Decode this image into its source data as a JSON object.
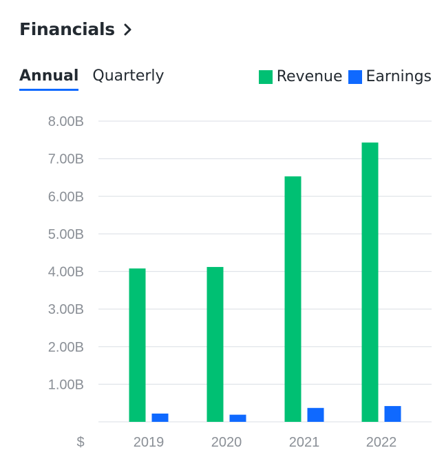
{
  "header": {
    "title": "Financials"
  },
  "tabs": [
    {
      "label": "Annual",
      "active": true
    },
    {
      "label": "Quarterly",
      "active": false
    }
  ],
  "legend": [
    {
      "label": "Revenue",
      "color": "#00c073"
    },
    {
      "label": "Earnings",
      "color": "#0f69ff"
    }
  ],
  "chart_data": {
    "type": "bar",
    "categories": [
      "2019",
      "2020",
      "2021",
      "2022"
    ],
    "series": [
      {
        "name": "Revenue",
        "color": "#00c073",
        "values": [
          4.08,
          4.12,
          6.53,
          7.43
        ]
      },
      {
        "name": "Earnings",
        "color": "#0f69ff",
        "values": [
          0.22,
          0.19,
          0.37,
          0.42
        ]
      }
    ],
    "y_ticks": [
      "1.00B",
      "2.00B",
      "3.00B",
      "4.00B",
      "5.00B",
      "6.00B",
      "7.00B",
      "8.00B"
    ],
    "y_tick_values": [
      1,
      2,
      3,
      4,
      5,
      6,
      7,
      8
    ],
    "y_unit_label": "$",
    "ylim": [
      0,
      8
    ],
    "grid": true,
    "legend_position": "top-right"
  }
}
